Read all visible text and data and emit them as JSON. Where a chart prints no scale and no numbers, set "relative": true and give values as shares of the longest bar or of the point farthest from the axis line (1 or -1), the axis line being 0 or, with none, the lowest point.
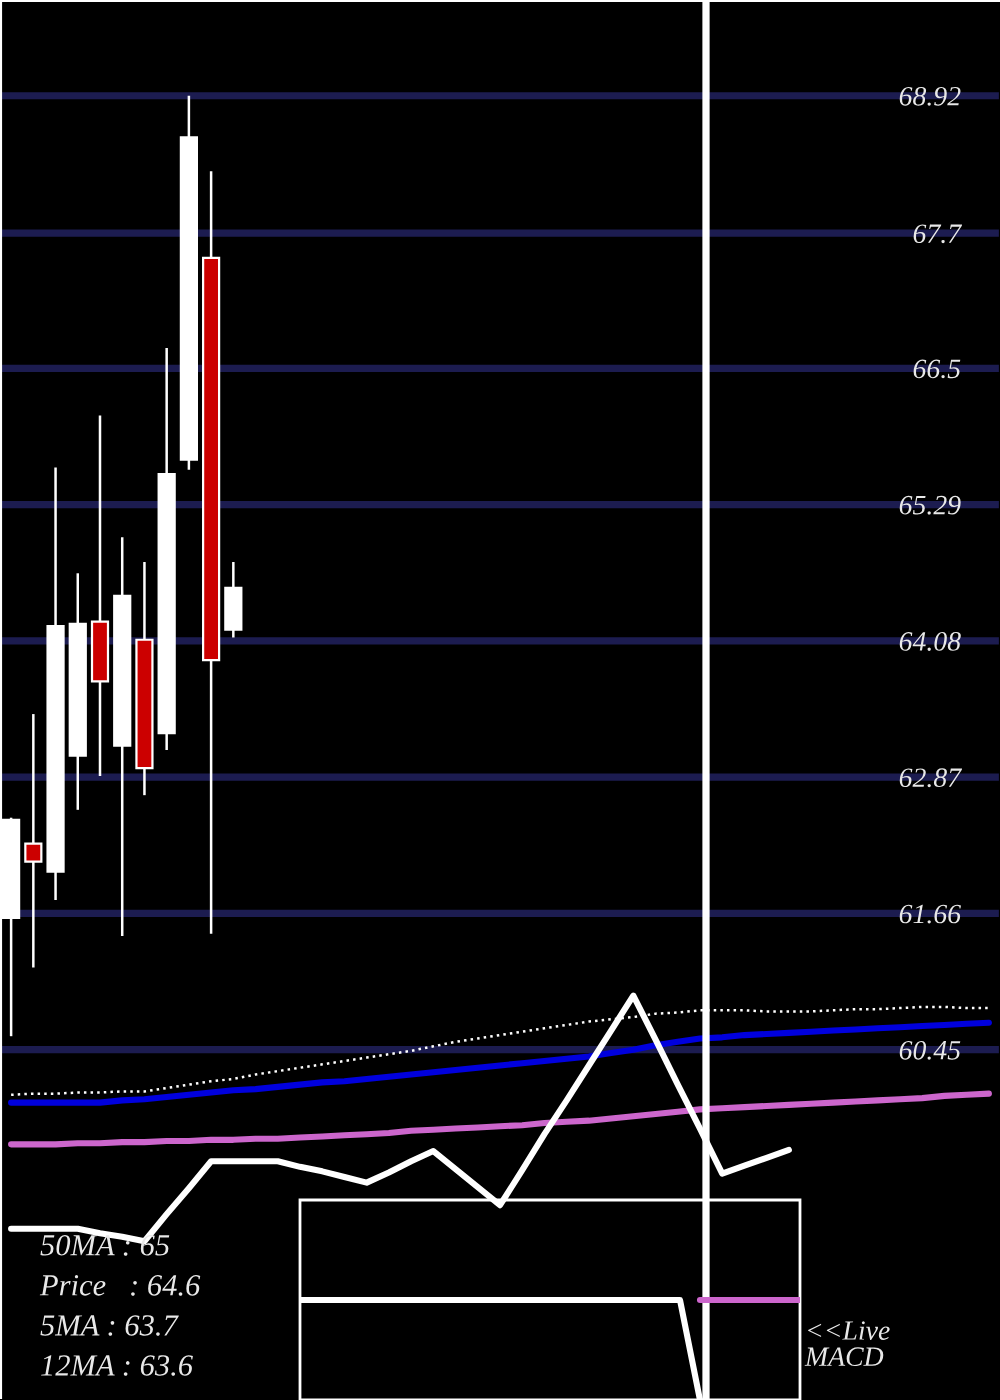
{
  "chart_data": [
    {
      "type": "candlestick",
      "categories": [
        null,
        null,
        null,
        null,
        null,
        null,
        null,
        null,
        null,
        null,
        null,
        null,
        null,
        null,
        null,
        null,
        null,
        null,
        null,
        null,
        null,
        null,
        null,
        null,
        null,
        null,
        null,
        null,
        null,
        null,
        null,
        null,
        null,
        null,
        null,
        null,
        null,
        null,
        null,
        null,
        null,
        null,
        null,
        null,
        null
      ],
      "ohlc": [
        [
          61.62,
          62.51,
          60.57,
          62.49
        ],
        [
          62.28,
          63.43,
          61.18,
          62.12
        ],
        [
          62.03,
          65.62,
          61.78,
          64.21
        ],
        [
          63.06,
          64.68,
          62.58,
          64.23
        ],
        [
          64.25,
          66.08,
          62.88,
          63.72
        ],
        [
          63.15,
          65.0,
          61.46,
          64.48
        ],
        [
          64.09,
          64.78,
          62.71,
          62.95
        ],
        [
          63.26,
          66.68,
          63.11,
          65.56
        ],
        [
          65.69,
          68.92,
          65.6,
          68.55
        ],
        [
          67.48,
          68.25,
          61.48,
          63.91
        ],
        [
          64.18,
          64.78,
          64.11,
          64.55
        ],
        null,
        null,
        null,
        null,
        null,
        null,
        null,
        null,
        null,
        null,
        null,
        null,
        null,
        null,
        null,
        null,
        null,
        null,
        null,
        null,
        null,
        null,
        null,
        null,
        null,
        null,
        null,
        null,
        null,
        null,
        null,
        null,
        null,
        null
      ],
      "colors": [
        "#ffffff",
        "#cc0000",
        "#ffffff",
        "#ffffff",
        "#cc0000",
        "#ffffff",
        "#cc0000",
        "#ffffff",
        "#ffffff",
        "#cc0000",
        "#ffffff",
        null,
        null,
        null,
        null,
        null,
        null,
        null,
        null,
        null,
        null,
        null,
        null,
        null,
        null,
        null,
        null,
        null,
        null,
        null,
        null,
        null,
        null,
        null,
        null,
        null,
        null,
        null,
        null,
        null,
        null,
        null,
        null,
        null,
        null
      ],
      "series": [
        {
          "type": "line",
          "color": "#cc66cc",
          "values": [
            59.61,
            59.61,
            59.61,
            59.62,
            59.62,
            59.63,
            59.63,
            59.64,
            59.64,
            59.65,
            59.65,
            59.66,
            59.66,
            59.67,
            59.68,
            59.69,
            59.7,
            59.71,
            59.73,
            59.74,
            59.75,
            59.76,
            59.77,
            59.78,
            59.8,
            59.81,
            59.82,
            59.84,
            59.86,
            59.88,
            59.9,
            59.92,
            59.93,
            59.94,
            59.95,
            59.96,
            59.97,
            59.98,
            59.99,
            60.0,
            60.01,
            60.02,
            60.04,
            60.05,
            60.06
          ]
        },
        {
          "type": "line",
          "color": "#0000dd",
          "values": [
            59.98,
            59.98,
            59.98,
            59.98,
            59.98,
            60.0,
            60.01,
            60.03,
            60.05,
            60.07,
            60.09,
            60.1,
            60.12,
            60.14,
            60.16,
            60.17,
            60.19,
            60.21,
            60.23,
            60.25,
            60.27,
            60.29,
            60.31,
            60.33,
            60.35,
            60.37,
            60.39,
            60.42,
            60.45,
            60.49,
            60.52,
            60.55,
            60.56,
            60.58,
            60.59,
            60.6,
            60.61,
            60.62,
            60.63,
            60.64,
            60.65,
            60.66,
            60.67,
            60.68,
            60.69
          ]
        },
        {
          "type": "line",
          "color": "#ffffff",
          "line_style": "dotted",
          "values": [
            60.05,
            60.06,
            60.06,
            60.07,
            60.07,
            60.08,
            60.08,
            60.11,
            60.14,
            60.17,
            60.19,
            60.23,
            60.26,
            60.29,
            60.32,
            60.35,
            60.38,
            60.41,
            60.44,
            60.48,
            60.52,
            60.55,
            60.58,
            60.61,
            60.64,
            60.67,
            60.7,
            60.72,
            60.74,
            60.77,
            60.78,
            60.8,
            60.8,
            60.8,
            60.79,
            60.79,
            60.79,
            60.8,
            60.81,
            60.81,
            60.82,
            60.83,
            60.83,
            60.82,
            60.82
          ]
        },
        {
          "type": "line",
          "color": "#ffffff",
          "values": [
            58.86,
            58.86,
            58.86,
            58.86,
            58.82,
            58.79,
            58.75,
            58.99,
            59.22,
            59.46,
            59.46,
            59.46,
            59.46,
            59.41,
            59.37,
            59.32,
            59.27,
            59.36,
            59.46,
            59.55,
            59.39,
            59.23,
            59.07,
            59.38,
            59.7,
            60.0,
            60.31,
            60.62,
            60.93,
            60.54,
            60.14,
            59.75,
            59.35,
            59.42,
            59.49,
            59.56,
            null,
            null,
            null,
            null,
            null,
            null,
            null,
            null,
            null
          ]
        }
      ],
      "ylim": [
        57.34,
        69.77
      ],
      "yticks": [
        68.92,
        67.7,
        66.5,
        65.29,
        64.08,
        62.87,
        61.66,
        60.45
      ],
      "grid": "y",
      "tick_labels": "y",
      "line_style": "solid",
      "annotations": [
        "50MA : 65",
        "Price   : 64.6",
        "5MA : 63.7",
        "12MA : 63.6"
      ]
    },
    {
      "type": "line",
      "relative": true,
      "tick_labels": false,
      "categories": [
        null,
        null,
        null,
        null,
        null,
        null,
        null,
        null,
        null,
        null,
        null,
        null,
        null,
        null,
        null,
        null,
        null,
        null,
        null,
        null,
        null,
        null,
        null,
        null,
        null,
        null
      ],
      "series": [
        {
          "color": "#ffffff",
          "values": [
            1,
            1,
            1,
            1,
            1,
            1,
            1,
            1,
            1,
            1,
            1,
            1,
            1,
            1,
            1,
            1,
            1,
            1,
            1,
            1,
            0,
            null,
            null,
            null,
            null,
            null
          ]
        },
        {
          "color": "#cc66cc",
          "values": [
            null,
            null,
            null,
            null,
            null,
            null,
            null,
            null,
            null,
            null,
            null,
            null,
            null,
            null,
            null,
            null,
            null,
            null,
            null,
            null,
            1,
            1,
            1,
            1,
            1,
            1
          ]
        }
      ],
      "annotations": [
        "<<Live\nMACD"
      ]
    }
  ]
}
